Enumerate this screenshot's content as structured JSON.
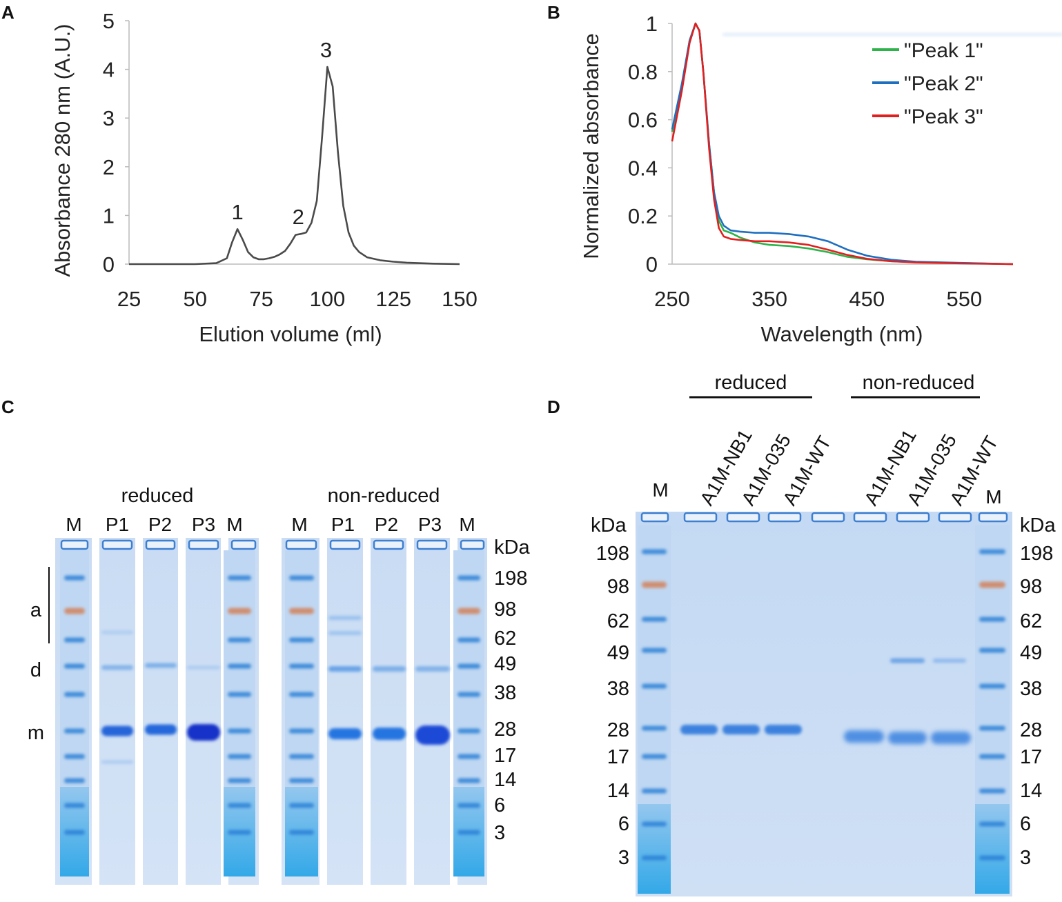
{
  "panels": {
    "A": {
      "letter": "A"
    },
    "B": {
      "letter": "B"
    },
    "C": {
      "letter": "C"
    },
    "D": {
      "letter": "D"
    }
  },
  "chart_data": [
    {
      "id": "A",
      "type": "line",
      "xlabel": "Elution volume (ml)",
      "ylabel": "Absorbance 280 nm (A.U.)",
      "xlim": [
        25,
        150
      ],
      "ylim": [
        0,
        5
      ],
      "xticks": [
        25,
        50,
        75,
        100,
        125,
        150
      ],
      "yticks": [
        0,
        1,
        2,
        3,
        4,
        5
      ],
      "color": "#4a4a4a",
      "series": [
        {
          "name": "absorbance",
          "x": [
            25,
            50,
            58,
            62,
            64,
            66,
            68,
            70,
            72,
            74,
            76,
            78,
            80,
            82,
            84,
            86,
            88,
            90,
            92,
            94,
            96,
            98,
            100,
            102,
            104,
            106,
            108,
            110,
            112,
            115,
            120,
            125,
            130,
            140,
            150
          ],
          "y": [
            0,
            0,
            0.02,
            0.12,
            0.45,
            0.72,
            0.5,
            0.25,
            0.14,
            0.1,
            0.1,
            0.12,
            0.15,
            0.2,
            0.27,
            0.42,
            0.6,
            0.62,
            0.65,
            0.85,
            1.3,
            2.6,
            4.05,
            3.65,
            2.3,
            1.2,
            0.65,
            0.38,
            0.25,
            0.14,
            0.08,
            0.05,
            0.03,
            0.01,
            0
          ]
        }
      ],
      "annotations": [
        {
          "text": "1",
          "x": 66,
          "y": 0.72
        },
        {
          "text": "2",
          "x": 89,
          "y": 0.62
        },
        {
          "text": "3",
          "x": 99.5,
          "y": 4.05
        }
      ]
    },
    {
      "id": "B",
      "type": "line",
      "xlabel": "Wavelength (nm)",
      "ylabel": "Normalized absorbance",
      "xlim": [
        250,
        600
      ],
      "ylim": [
        0,
        1
      ],
      "xticks": [
        250,
        350,
        450,
        550
      ],
      "yticks": [
        0,
        0.2,
        0.4,
        0.6,
        0.8,
        1
      ],
      "ytick_labels": [
        "0",
        "0.2",
        "0.4",
        "0.6",
        "0.8",
        "1"
      ],
      "legend": "top-right",
      "series": [
        {
          "name": "\"Peak 1\"",
          "color": "#2db34a",
          "x": [
            250,
            260,
            268,
            274,
            278,
            282,
            288,
            293,
            298,
            303,
            310,
            320,
            335,
            350,
            370,
            390,
            410,
            430,
            450,
            475,
            500,
            550,
            600
          ],
          "y": [
            0.55,
            0.74,
            0.93,
            1.0,
            0.97,
            0.8,
            0.5,
            0.3,
            0.18,
            0.14,
            0.13,
            0.11,
            0.09,
            0.08,
            0.075,
            0.065,
            0.05,
            0.03,
            0.02,
            0.012,
            0.008,
            0.004,
            0.0
          ]
        },
        {
          "name": "\"Peak 2\"",
          "color": "#1f6fc0",
          "x": [
            250,
            260,
            268,
            274,
            278,
            282,
            288,
            293,
            298,
            303,
            310,
            320,
            335,
            350,
            370,
            390,
            410,
            430,
            450,
            475,
            500,
            550,
            600
          ],
          "y": [
            0.56,
            0.75,
            0.93,
            1.0,
            0.97,
            0.8,
            0.5,
            0.3,
            0.2,
            0.16,
            0.14,
            0.135,
            0.13,
            0.13,
            0.125,
            0.115,
            0.095,
            0.06,
            0.035,
            0.018,
            0.01,
            0.005,
            0.0
          ]
        },
        {
          "name": "\"Peak 3\"",
          "color": "#e02020",
          "x": [
            250,
            260,
            268,
            274,
            278,
            282,
            288,
            293,
            298,
            303,
            310,
            320,
            335,
            350,
            370,
            390,
            410,
            430,
            450,
            475,
            500,
            550,
            600
          ],
          "y": [
            0.51,
            0.72,
            0.92,
            1.0,
            0.97,
            0.8,
            0.48,
            0.27,
            0.15,
            0.115,
            0.105,
            0.1,
            0.095,
            0.095,
            0.09,
            0.08,
            0.06,
            0.038,
            0.022,
            0.012,
            0.007,
            0.003,
            0.0
          ]
        }
      ]
    }
  ],
  "gel_c": {
    "group_reduced": "reduced",
    "group_nonreduced": "non-reduced",
    "lanes_reduced": [
      "M",
      "P1",
      "P2",
      "P3",
      "M"
    ],
    "lanes_nonreduced": [
      "M",
      "P1",
      "P2",
      "P3",
      "M"
    ],
    "kda_label": "kDa",
    "markers": [
      "198",
      "98",
      "62",
      "49",
      "38",
      "28",
      "17",
      "14",
      "6",
      "3"
    ],
    "side_labels": [
      "a",
      "d",
      "m"
    ]
  },
  "gel_d": {
    "group_reduced": "reduced",
    "group_nonreduced": "non-reduced",
    "lanes": [
      "A1M-NB1",
      "A1M-035",
      "A1M-WT",
      "A1M-NB1",
      "A1M-035",
      "A1M-WT"
    ],
    "marker_lane": "M",
    "kda_label": "kDa",
    "markers": [
      "198",
      "98",
      "62",
      "49",
      "38",
      "28",
      "17",
      "14",
      "6",
      "3"
    ]
  }
}
